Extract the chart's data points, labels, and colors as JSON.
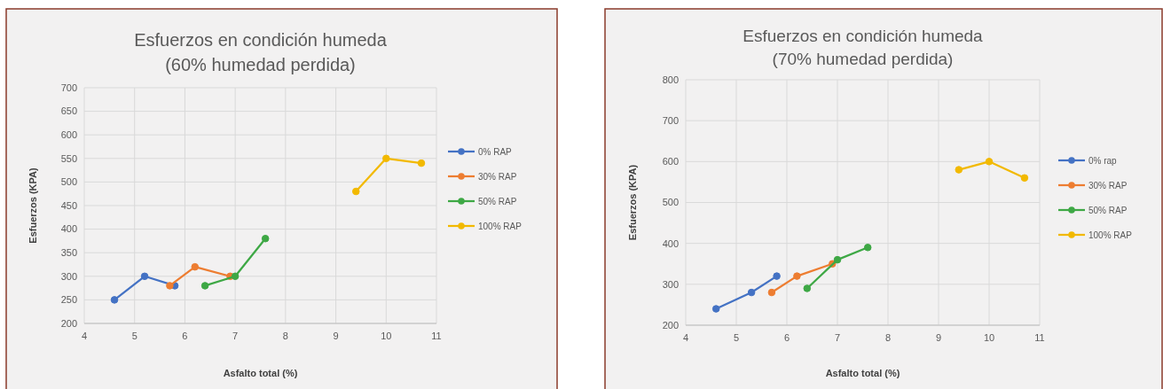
{
  "chart_data": [
    {
      "type": "line",
      "title": "Esfuerzos en condición humeda\n(60% humedad perdida)",
      "xlabel": "Asfalto total (%)",
      "ylabel": "Esfuerzos (KPA)",
      "xlim": [
        4,
        11
      ],
      "xticks": [
        4,
        5,
        6,
        7,
        8,
        9,
        10,
        11
      ],
      "ylim": [
        200,
        700
      ],
      "yticks": [
        200,
        250,
        300,
        350,
        400,
        450,
        500,
        550,
        600,
        650,
        700
      ],
      "grid": true,
      "legend": "right",
      "marker": "circle",
      "line_style": "solid",
      "series": [
        {
          "name": "0% RAP",
          "color": "#4472c4",
          "x": [
            4.6,
            5.2,
            5.8
          ],
          "values": [
            250,
            300,
            280
          ]
        },
        {
          "name": "30% RAP",
          "color": "#ed7d31",
          "x": [
            5.7,
            6.2,
            6.9
          ],
          "values": [
            280,
            320,
            300
          ]
        },
        {
          "name": "50% RAP",
          "color": "#3ea845",
          "x": [
            6.4,
            7.0,
            7.6
          ],
          "values": [
            280,
            300,
            380
          ]
        },
        {
          "name": "100% RAP",
          "color": "#f2b900",
          "x": [
            9.4,
            10.0,
            10.7
          ],
          "values": [
            480,
            550,
            540
          ]
        }
      ]
    },
    {
      "type": "line",
      "title": "Esfuerzos en condición humeda\n(70% humedad perdida)",
      "xlabel": "Asfalto total (%)",
      "ylabel": "Esfuerzos (KPA)",
      "xlim": [
        4,
        11
      ],
      "xticks": [
        4,
        5,
        6,
        7,
        8,
        9,
        10,
        11
      ],
      "ylim": [
        200,
        800
      ],
      "yticks": [
        200,
        300,
        400,
        500,
        600,
        700,
        800
      ],
      "grid": true,
      "legend": "right",
      "marker": "circle",
      "line_style": "solid",
      "series": [
        {
          "name": "0% rap",
          "color": "#4472c4",
          "x": [
            4.6,
            5.3,
            5.8
          ],
          "values": [
            240,
            280,
            320
          ]
        },
        {
          "name": "30% RAP",
          "color": "#ed7d31",
          "x": [
            5.7,
            6.2,
            6.9
          ],
          "values": [
            280,
            320,
            350
          ]
        },
        {
          "name": "50% RAP",
          "color": "#3ea845",
          "x": [
            6.4,
            7.0,
            7.6
          ],
          "values": [
            290,
            360,
            390
          ]
        },
        {
          "name": "100% RAP",
          "color": "#f2b900",
          "x": [
            9.4,
            10.0,
            10.7
          ],
          "values": [
            580,
            600,
            560
          ]
        }
      ]
    }
  ]
}
